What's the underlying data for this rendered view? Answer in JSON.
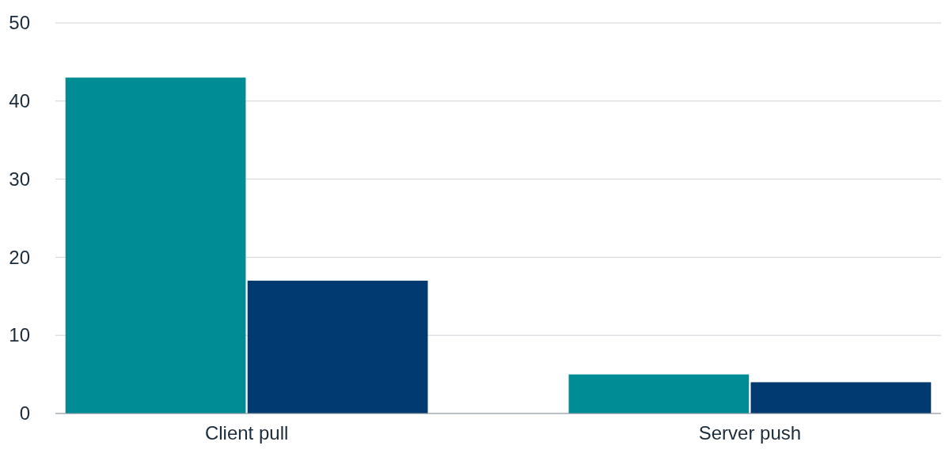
{
  "chart_data": {
    "type": "bar",
    "categories": [
      "Client pull",
      "Server push"
    ],
    "series": [
      {
        "color": "#008c95",
        "values": [
          43,
          5
        ]
      },
      {
        "color": "#003a70",
        "values": [
          17,
          4
        ]
      }
    ],
    "ylim": [
      0,
      50
    ],
    "yticks": [
      0,
      10,
      20,
      30,
      40,
      50
    ],
    "grid": "y"
  }
}
